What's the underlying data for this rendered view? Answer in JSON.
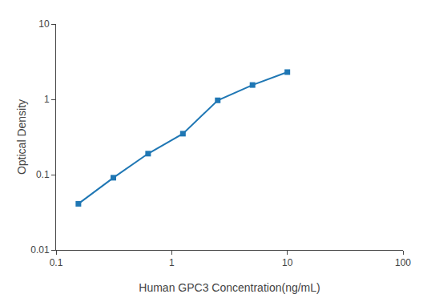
{
  "chart_data": {
    "type": "line",
    "x": [
      0.156,
      0.313,
      0.625,
      1.25,
      2.5,
      5.0,
      10.0
    ],
    "values": [
      0.041,
      0.091,
      0.19,
      0.35,
      0.97,
      1.55,
      2.3
    ],
    "xlabel": "Human GPC3 Concentration(ng/mL)",
    "ylabel": "Optical Density",
    "xlim": [
      0.1,
      100
    ],
    "ylim": [
      0.01,
      10
    ],
    "xticks": [
      0.1,
      1,
      10,
      100
    ],
    "yticks": [
      0.01,
      0.1,
      1,
      10
    ],
    "log": true,
    "grid": false,
    "marker": "square",
    "line_style": "solid"
  }
}
